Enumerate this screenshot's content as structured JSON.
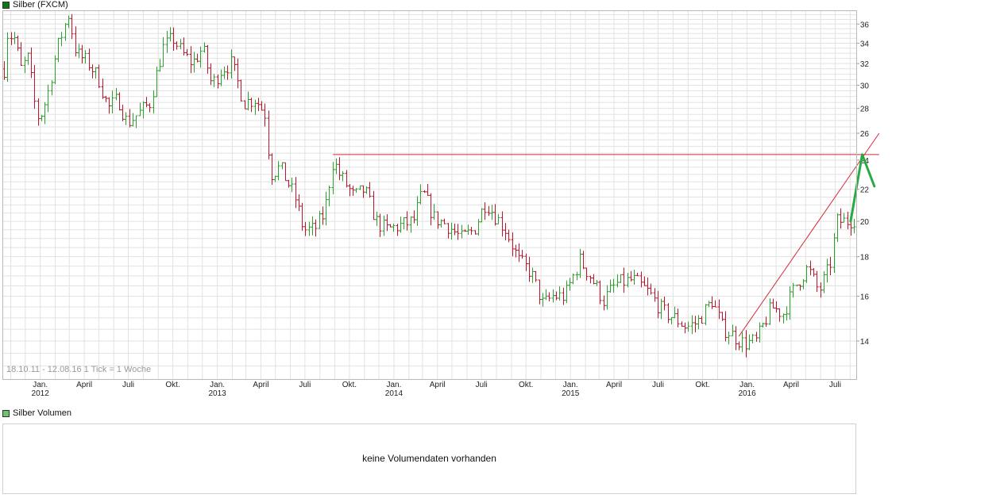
{
  "title": "Silber (FXCM)",
  "volume": {
    "title": "Silber Volumen",
    "message": "keine Volumendaten vorhanden"
  },
  "date_range": "18.10.11 - 12.08.16",
  "tick_info": "1 Tick = 1 Woche",
  "colors": {
    "up": "#2ca02c",
    "down": "#c0142c",
    "trendline": "#d42a3a",
    "arrow": "#2aa844",
    "grid": "#e2e2e2",
    "price_swatch": "#0b7a14",
    "volume_swatch": "#6cc56c"
  },
  "chart_data": {
    "type": "ohlc",
    "scale": "log",
    "ylim": [
      12.5,
      37.5
    ],
    "yticks": [
      14,
      16,
      18,
      20,
      22,
      24,
      26,
      28,
      30,
      32,
      34,
      36
    ],
    "xrange": [
      "2011-10-18",
      "2016-08-12"
    ],
    "xticks": [
      {
        "date": "2012-01-01",
        "label": "Jan.",
        "year": "2012"
      },
      {
        "date": "2012-04-01",
        "label": "April"
      },
      {
        "date": "2012-07-01",
        "label": "Juli"
      },
      {
        "date": "2012-10-01",
        "label": "Okt."
      },
      {
        "date": "2013-01-01",
        "label": "Jan.",
        "year": "2013"
      },
      {
        "date": "2013-04-01",
        "label": "April"
      },
      {
        "date": "2013-07-01",
        "label": "Juli"
      },
      {
        "date": "2013-10-01",
        "label": "Okt."
      },
      {
        "date": "2014-01-01",
        "label": "Jan.",
        "year": "2014"
      },
      {
        "date": "2014-04-01",
        "label": "April"
      },
      {
        "date": "2014-07-01",
        "label": "Juli"
      },
      {
        "date": "2014-10-01",
        "label": "Okt."
      },
      {
        "date": "2015-01-01",
        "label": "Jan.",
        "year": "2015"
      },
      {
        "date": "2015-04-01",
        "label": "April"
      },
      {
        "date": "2015-07-01",
        "label": "Juli"
      },
      {
        "date": "2015-10-01",
        "label": "Okt."
      },
      {
        "date": "2016-01-01",
        "label": "Jan.",
        "year": "2016"
      },
      {
        "date": "2016-04-01",
        "label": "April"
      },
      {
        "date": "2016-07-01",
        "label": "Juli"
      }
    ],
    "close_path": [
      [
        "2011-10-18",
        31.5
      ],
      [
        "2011-10-25",
        35.0
      ],
      [
        "2011-11-08",
        34.5
      ],
      [
        "2011-11-22",
        31.5
      ],
      [
        "2011-12-06",
        32.5
      ],
      [
        "2011-12-20",
        28.5
      ],
      [
        "2011-12-29",
        27.0
      ],
      [
        "2012-01-15",
        29.0
      ],
      [
        "2012-02-05",
        33.5
      ],
      [
        "2012-02-28",
        37.0
      ],
      [
        "2012-03-15",
        33.0
      ],
      [
        "2012-04-10",
        32.0
      ],
      [
        "2012-05-01",
        30.5
      ],
      [
        "2012-05-20",
        28.0
      ],
      [
        "2012-06-10",
        28.8
      ],
      [
        "2012-06-28",
        26.8
      ],
      [
        "2012-07-20",
        27.5
      ],
      [
        "2012-08-15",
        28.5
      ],
      [
        "2012-09-10",
        33.5
      ],
      [
        "2012-10-01",
        34.5
      ],
      [
        "2012-10-20",
        33.0
      ],
      [
        "2012-11-10",
        32.0
      ],
      [
        "2012-12-01",
        33.5
      ],
      [
        "2012-12-20",
        30.0
      ],
      [
        "2013-01-10",
        31.5
      ],
      [
        "2013-01-30",
        32.0
      ],
      [
        "2013-02-25",
        28.5
      ],
      [
        "2013-03-20",
        28.8
      ],
      [
        "2013-04-10",
        27.5
      ],
      [
        "2013-04-20",
        23.0
      ],
      [
        "2013-05-10",
        23.5
      ],
      [
        "2013-06-10",
        21.5
      ],
      [
        "2013-06-28",
        19.5
      ],
      [
        "2013-07-20",
        19.5
      ],
      [
        "2013-08-10",
        20.5
      ],
      [
        "2013-08-28",
        24.0
      ],
      [
        "2013-09-10",
        23.0
      ],
      [
        "2013-10-10",
        21.5
      ],
      [
        "2013-11-01",
        22.0
      ],
      [
        "2013-11-25",
        20.0
      ],
      [
        "2013-12-15",
        19.5
      ],
      [
        "2014-01-20",
        19.8
      ],
      [
        "2014-02-10",
        20.0
      ],
      [
        "2014-03-01",
        21.8
      ],
      [
        "2014-03-25",
        20.2
      ],
      [
        "2014-04-20",
        19.8
      ],
      [
        "2014-05-20",
        19.0
      ],
      [
        "2014-06-15",
        19.5
      ],
      [
        "2014-07-10",
        21.2
      ],
      [
        "2014-07-25",
        20.5
      ],
      [
        "2014-08-20",
        19.5
      ],
      [
        "2014-09-15",
        17.8
      ],
      [
        "2014-10-10",
        17.2
      ],
      [
        "2014-11-05",
        15.6
      ],
      [
        "2014-11-25",
        16.0
      ],
      [
        "2014-12-20",
        16.0
      ],
      [
        "2015-01-20",
        17.8
      ],
      [
        "2015-02-10",
        17.0
      ],
      [
        "2015-03-10",
        15.8
      ],
      [
        "2015-04-05",
        16.6
      ],
      [
        "2015-05-10",
        16.8
      ],
      [
        "2015-06-10",
        16.2
      ],
      [
        "2015-07-10",
        15.3
      ],
      [
        "2015-08-10",
        14.9
      ],
      [
        "2015-08-28",
        14.6
      ],
      [
        "2015-09-20",
        14.8
      ],
      [
        "2015-10-20",
        15.8
      ],
      [
        "2015-11-10",
        14.6
      ],
      [
        "2015-12-05",
        14.2
      ],
      [
        "2015-12-25",
        13.9
      ],
      [
        "2016-01-20",
        14.0
      ],
      [
        "2016-02-20",
        15.5
      ],
      [
        "2016-03-15",
        15.2
      ],
      [
        "2016-04-10",
        16.5
      ],
      [
        "2016-05-05",
        17.4
      ],
      [
        "2016-05-28",
        16.2
      ],
      [
        "2016-06-20",
        17.5
      ],
      [
        "2016-07-05",
        20.0
      ],
      [
        "2016-07-25",
        20.0
      ],
      [
        "2016-08-12",
        20.2
      ]
    ],
    "annotations": {
      "resistance": {
        "y": 24.4,
        "from": "2013-08-28",
        "to": "2016-09-30"
      },
      "trendline": {
        "from": [
          "2015-12-15",
          14.2
        ],
        "to": [
          "2016-09-30",
          26.0
        ]
      },
      "arrow": {
        "start": [
          "2016-08-02",
          20.0
        ],
        "peak": [
          "2016-08-26",
          24.4
        ],
        "end": [
          "2016-09-20",
          22.2
        ]
      }
    }
  }
}
